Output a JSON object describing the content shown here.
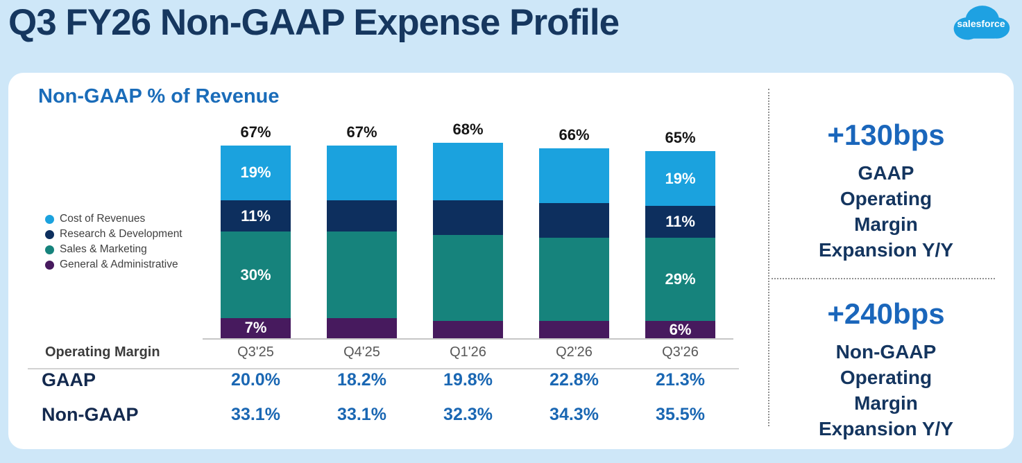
{
  "header": {
    "title": "Q3 FY26 Non-GAAP Expense Profile",
    "logo_text": "salesforce"
  },
  "chart_data": {
    "type": "bar",
    "variant": "stacked-column",
    "title": "Non-GAAP % of Revenue",
    "unit": "%",
    "categories": [
      "Q3'25",
      "Q4'25",
      "Q1'26",
      "Q2'26",
      "Q3'26"
    ],
    "series": [
      {
        "name": "Cost of Revenues",
        "color": "#1ba2de",
        "values": [
          19,
          19,
          20,
          19,
          19
        ]
      },
      {
        "name": "Research & Development",
        "color": "#0d2f5e",
        "values": [
          11,
          11,
          12,
          12,
          11
        ]
      },
      {
        "name": "Sales & Marketing",
        "color": "#16837c",
        "values": [
          30,
          30,
          30,
          29,
          29
        ]
      },
      {
        "name": "General & Administrative",
        "color": "#471a5e",
        "values": [
          7,
          7,
          6,
          6,
          6
        ]
      }
    ],
    "stack_order_top_to_bottom": [
      "Cost of Revenues",
      "Research & Development",
      "Sales & Marketing",
      "General & Administrative"
    ],
    "totals": [
      "67%",
      "67%",
      "68%",
      "66%",
      "65%"
    ],
    "segment_labels_visible": [
      true,
      false,
      false,
      false,
      true
    ],
    "segment_labels": {
      "Q3'25": [
        "19%",
        "11%",
        "30%",
        "7%"
      ],
      "Q3'26": [
        "19%",
        "11%",
        "29%",
        "6%"
      ]
    },
    "ylim": [
      0,
      70
    ],
    "grid": false,
    "legend_position": "left"
  },
  "margin_table": {
    "header_label": "Operating Margin",
    "rows": [
      {
        "label": "GAAP",
        "values": [
          "20.0%",
          "18.2%",
          "19.8%",
          "22.8%",
          "21.3%"
        ]
      },
      {
        "label": "Non-GAAP",
        "values": [
          "33.1%",
          "33.1%",
          "32.3%",
          "34.3%",
          "35.5%"
        ]
      }
    ]
  },
  "callouts": [
    {
      "value": "+130bps",
      "lines": [
        "GAAP",
        "Operating",
        "Margin",
        "Expansion Y/Y"
      ]
    },
    {
      "value": "+240bps",
      "lines": [
        "Non-GAAP",
        "Operating",
        "Margin",
        "Expansion Y/Y"
      ]
    }
  ],
  "colors": {
    "background": "#cee7f8",
    "card": "#ffffff",
    "title_navy": "#16375f",
    "accent_blue": "#1a6cb9",
    "value_blue": "#1a67b3",
    "callout_blue": "#1a66bb",
    "callout_navy": "#14355f",
    "total_label": "#161616",
    "category_gray": "#575757",
    "axis_line": "#c6c6c6",
    "divider_dotted": "#8f8f8f",
    "logo_blue": "#1ea1e2"
  }
}
